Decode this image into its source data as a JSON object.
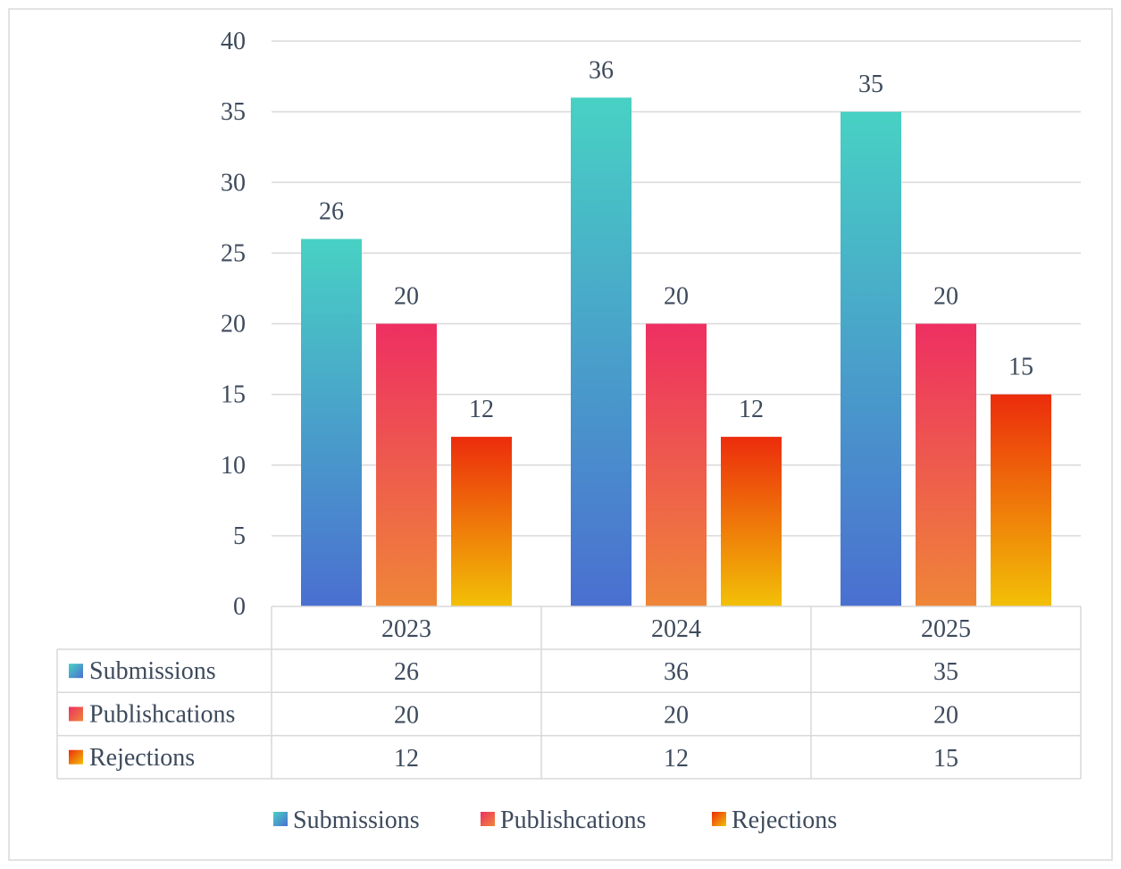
{
  "chart_data": {
    "type": "bar",
    "categories": [
      "2023",
      "2024",
      "2025"
    ],
    "series": [
      {
        "name": "Submissions",
        "values": [
          26,
          36,
          35
        ],
        "gradient": [
          "#48d1c4",
          "#4a6fd0"
        ]
      },
      {
        "name": "Publishcations",
        "values": [
          20,
          20,
          20
        ],
        "gradient": [
          "#ee2f62",
          "#ef8638"
        ]
      },
      {
        "name": "Rejections",
        "values": [
          12,
          12,
          15
        ],
        "gradient": [
          "#ec2c0c",
          "#f2c007"
        ]
      }
    ],
    "ylim": [
      0,
      40
    ],
    "yticks": [
      0,
      5,
      10,
      15,
      20,
      25,
      30,
      35,
      40
    ],
    "grid": true,
    "data_labels": true,
    "data_table": true,
    "legend": "bottom",
    "colors": {
      "text": "#3d4a5c",
      "grid": "#d9d9d9",
      "border": "#d9d9d9"
    }
  }
}
